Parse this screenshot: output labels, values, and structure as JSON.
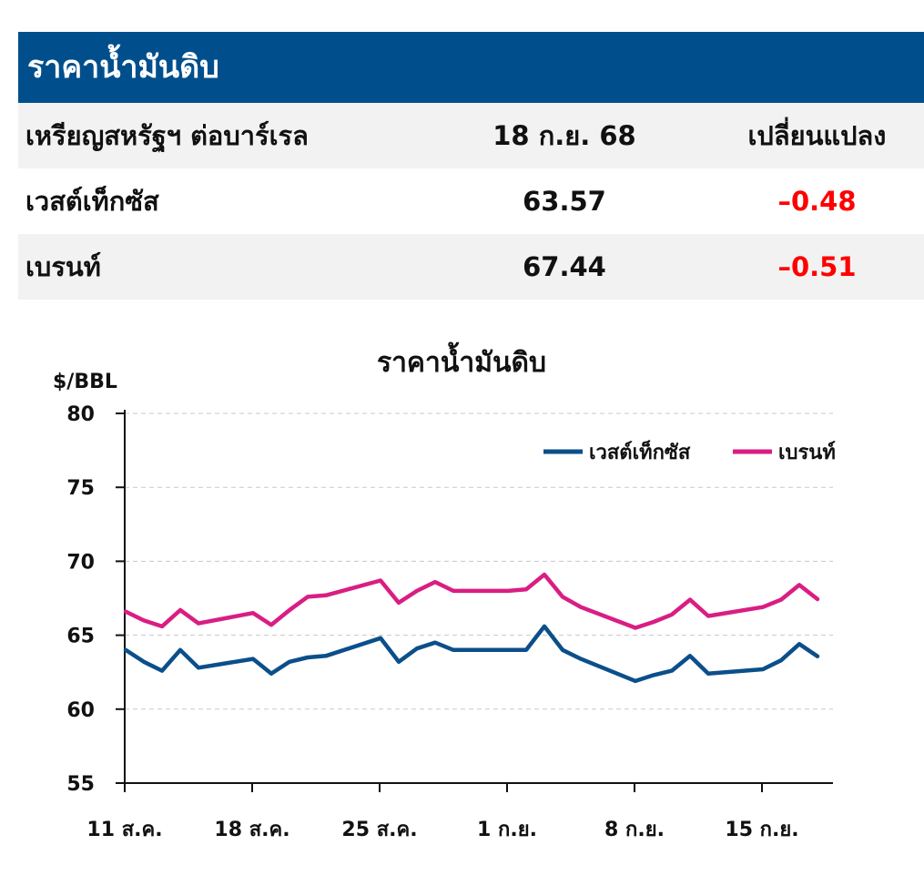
{
  "table": {
    "title": "ราคาน้ำมันดิบ",
    "headers": [
      "เหรียญสหรัฐฯ ต่อบาร์เรล",
      "18 ก.ย. 68",
      "เปลี่ยนแปลง"
    ],
    "rows": [
      {
        "name": "เวสต์เท็กซัส",
        "price": "63.57",
        "change": "–0.48"
      },
      {
        "name": "เบรนท์",
        "price": "67.44",
        "change": "–0.51"
      }
    ],
    "colors": {
      "header_bg": "#004f8c",
      "negative": "#ff0000"
    }
  },
  "chart_data": {
    "type": "line",
    "title": "ราคาน้ำมันดิบ",
    "ylabel": "$/BBL",
    "ylim": [
      55,
      80
    ],
    "yticks": [
      "55",
      "60",
      "65",
      "70",
      "75",
      "80"
    ],
    "xtick_labels": [
      "11 ส.ค.",
      "18 ส.ค.",
      "25 ส.ค.",
      "1 ก.ย.",
      "8 ก.ย.",
      "15 ก.ย."
    ],
    "grid": "horizontal dashed",
    "legend_position": "top-right",
    "series": [
      {
        "name": "เวสต์เท็กซัส",
        "color": "#0b4f8a",
        "values": [
          64.0,
          63.2,
          62.6,
          64.0,
          62.8,
          63.4,
          62.4,
          63.2,
          63.5,
          63.6,
          64.8,
          63.2,
          64.1,
          64.5,
          64.0,
          64.0,
          64.0,
          65.6,
          64.0,
          63.4,
          61.9,
          62.3,
          62.6,
          63.6,
          62.4,
          62.7,
          63.3,
          64.4,
          63.57
        ]
      },
      {
        "name": "เบรนท์",
        "color": "#d91e83",
        "values": [
          66.6,
          66.0,
          65.6,
          66.7,
          65.8,
          66.5,
          65.7,
          66.7,
          67.6,
          67.7,
          68.7,
          67.2,
          68.0,
          68.6,
          68.0,
          68.0,
          68.1,
          69.1,
          67.6,
          66.9,
          65.5,
          65.9,
          66.4,
          67.4,
          66.3,
          66.9,
          67.4,
          68.4,
          67.44
        ]
      }
    ]
  }
}
